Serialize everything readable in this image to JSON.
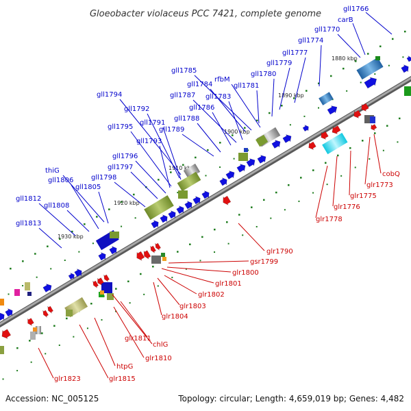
{
  "title": "Gloeobacter violaceus PCC 7421, complete genome",
  "accession": "Accession: NC_005125",
  "summary": "Topology: circular; Length: 4,659,019 bp; Genes: 4,482",
  "colors": {
    "forward_label": "#0000cc",
    "reverse_label": "#cc0000",
    "backbone": "#8c8c8c",
    "forward_feature": "#1010e0",
    "reverse_feature": "#e01010",
    "tick": "#1a7a1a"
  },
  "kbp_ticks": [
    "1880 kbp",
    "1890 kbp",
    "1900 kbp",
    "1910 kbp",
    "1920 kbp",
    "1930 kbp"
  ],
  "forward_labels": [
    "gll1766",
    "carB",
    "gll1770",
    "gll1774",
    "gll1777",
    "gll1779",
    "gll1780",
    "gll1781",
    "rfbM",
    "gll1785",
    "gll1784",
    "gll1783",
    "gll1787",
    "gll1786",
    "gll1788",
    "gll1789",
    "gll1794",
    "gll1792",
    "gll1791",
    "gll1795",
    "gll1793",
    "gll1796",
    "gll1797",
    "gll1798",
    "thiG",
    "gll1806",
    "gll1805",
    "gll1812",
    "gll1808",
    "gll1813"
  ],
  "reverse_labels": [
    "cobQ",
    "glr1773",
    "glr1775",
    "glr1776",
    "glr1778",
    "glr1790",
    "gsr1799",
    "glr1800",
    "glr1801",
    "glr1802",
    "glr1803",
    "glr1804",
    "glr1811",
    "chlG",
    "glr1810",
    "htpG",
    "glr1815",
    "glr1823"
  ]
}
